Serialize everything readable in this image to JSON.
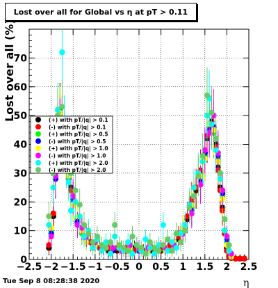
{
  "title": "Lost over all for Global vs  η at pT > 0.11",
  "timestamp": "Tue Sep  8 08:28:38 2020",
  "colors": {
    "red": "#ff0000",
    "black": "#000000",
    "green": "#00ff00",
    "blue": "#0000ff",
    "yellow": "#ffff00",
    "magenta": "#ff00ff",
    "cyan": "#00ffff",
    "lightgreen": "#66cc66"
  },
  "chart_data": {
    "type": "scatter",
    "xlabel": "η",
    "ylabel": "Lost over all (%)",
    "xlim": [
      -2.5,
      2.5
    ],
    "ylim": [
      0,
      80
    ],
    "x_ticks": [
      "−2.5",
      "−2",
      "−1.5",
      "−1",
      "−0.5",
      "0",
      "0.5",
      "1",
      "1.5",
      "2",
      "2.5"
    ],
    "y_ticks": [
      "0",
      "10",
      "20",
      "30",
      "40",
      "50",
      "60",
      "70"
    ],
    "grid": true,
    "legend_position": "left-middle",
    "series": [
      {
        "name": "(+) with pT/|q| > 0.1",
        "color": "black",
        "x": [
          -2.05,
          -1.95,
          -1.9,
          -1.85,
          -1.8,
          -1.75,
          -1.7,
          -1.65,
          -1.6,
          -1.55,
          -1.5,
          -1.4,
          -1.3,
          -1.2,
          -1.1,
          -1.0,
          -0.9,
          -0.8,
          -0.7,
          -0.6,
          -0.5,
          -0.4,
          -0.3,
          -0.2,
          -0.1,
          0.0,
          0.1,
          0.2,
          0.3,
          0.4,
          0.5,
          0.6,
          0.7,
          0.8,
          0.9,
          1.0,
          1.1,
          1.2,
          1.3,
          1.4,
          1.5,
          1.55,
          1.6,
          1.65,
          1.7,
          1.75,
          1.8,
          1.85,
          1.9,
          1.95,
          2.0,
          2.05,
          2.1,
          2.2,
          2.3,
          2.4
        ],
        "y": [
          4,
          15,
          33,
          45,
          52,
          48,
          40,
          33,
          28,
          25,
          20,
          14,
          10,
          8,
          6,
          5,
          4,
          4,
          3,
          4,
          3,
          4,
          3,
          3,
          4,
          3,
          3,
          4,
          3,
          4,
          3,
          4,
          5,
          5,
          7,
          10,
          14,
          20,
          24,
          30,
          35,
          42,
          46,
          48,
          45,
          40,
          32,
          25,
          18,
          10,
          4,
          1,
          0.5,
          0.3,
          0.3,
          0.3
        ]
      },
      {
        "name": "(-) with pT/|q| > 0.1",
        "color": "red",
        "x": [
          -2.05,
          -1.95,
          -1.9,
          -1.85,
          -1.8,
          -1.75,
          -1.7,
          -1.65,
          -1.6,
          -1.55,
          -1.5,
          -1.4,
          -1.3,
          -1.2,
          -1.1,
          -1.0,
          -0.9,
          -0.8,
          -0.7,
          -0.6,
          -0.5,
          -0.4,
          -0.3,
          -0.2,
          -0.1,
          0.0,
          0.1,
          0.2,
          0.3,
          0.4,
          0.5,
          0.6,
          0.7,
          0.8,
          0.9,
          1.0,
          1.1,
          1.2,
          1.3,
          1.4,
          1.5,
          1.55,
          1.6,
          1.65,
          1.7,
          1.75,
          1.8,
          1.85,
          1.9,
          1.95,
          2.0,
          2.05,
          2.1,
          2.2,
          2.3,
          2.4
        ],
        "y": [
          5,
          16,
          34,
          46,
          50,
          47,
          41,
          34,
          29,
          24,
          19,
          13,
          10,
          7,
          6,
          5,
          4,
          4,
          4,
          3,
          4,
          3,
          4,
          3,
          3,
          4,
          3,
          3,
          4,
          3,
          4,
          4,
          5,
          6,
          8,
          11,
          15,
          21,
          25,
          31,
          36,
          43,
          47,
          47,
          44,
          39,
          31,
          24,
          17,
          9,
          3,
          1,
          0.5,
          0.3,
          0.3,
          0.3
        ]
      },
      {
        "name": "(+) with pT/|q| > 0.5",
        "color": "green",
        "x": [
          -2.0,
          -1.9,
          -1.8,
          -1.7,
          -1.6,
          -1.5,
          -1.4,
          -1.3,
          -1.2,
          -1.0,
          -0.8,
          -0.6,
          -0.4,
          -0.2,
          0.0,
          0.2,
          0.4,
          0.6,
          0.8,
          1.0,
          1.2,
          1.4,
          1.5,
          1.6,
          1.7,
          1.8,
          1.9,
          2.0,
          2.1
        ],
        "y": [
          10,
          30,
          50,
          40,
          30,
          20,
          14,
          9,
          7,
          5,
          4,
          3,
          4,
          3,
          3,
          4,
          3,
          4,
          6,
          10,
          18,
          28,
          36,
          46,
          44,
          35,
          22,
          6,
          1
        ]
      },
      {
        "name": "(-) with pT/|q| > 0.5",
        "color": "blue",
        "x": [
          -2.0,
          -1.9,
          -1.8,
          -1.7,
          -1.6,
          -1.5,
          -1.4,
          -1.3,
          -1.2,
          -1.0,
          -0.8,
          -0.6,
          -0.4,
          -0.2,
          0.0,
          0.2,
          0.4,
          0.6,
          0.8,
          1.0,
          1.2,
          1.4,
          1.5,
          1.6,
          1.7,
          1.8,
          1.9,
          2.0,
          2.1
        ],
        "y": [
          9,
          28,
          48,
          41,
          31,
          21,
          13,
          10,
          7,
          6,
          4,
          3,
          3,
          4,
          3,
          3,
          4,
          3,
          5,
          9,
          17,
          27,
          37,
          45,
          46,
          36,
          23,
          7,
          1
        ]
      },
      {
        "name": "(+) with pT/|q| > 1.0",
        "color": "yellow",
        "x": [
          -2.0,
          -1.9,
          -1.8,
          -1.7,
          -1.6,
          -1.5,
          -1.4,
          -1.3,
          -1.2,
          -1.0,
          -0.8,
          -0.6,
          -0.4,
          -0.2,
          0.0,
          0.2,
          0.4,
          0.6,
          0.8,
          1.0,
          1.2,
          1.4,
          1.5,
          1.6,
          1.7,
          1.8,
          1.9,
          2.0,
          2.1
        ],
        "y": [
          11,
          32,
          51,
          42,
          29,
          19,
          15,
          10,
          6,
          5,
          5,
          4,
          3,
          4,
          4,
          3,
          4,
          3,
          6,
          11,
          19,
          29,
          35,
          47,
          45,
          34,
          21,
          5,
          1
        ]
      },
      {
        "name": "(-) with pT/|q| > 1.0",
        "color": "magenta",
        "x": [
          -2.0,
          -1.9,
          -1.8,
          -1.7,
          -1.6,
          -1.5,
          -1.4,
          -1.3,
          -1.2,
          -1.0,
          -0.8,
          -0.6,
          -0.4,
          -0.2,
          0.0,
          0.2,
          0.4,
          0.6,
          0.8,
          1.0,
          1.2,
          1.4,
          1.5,
          1.6,
          1.7,
          1.8,
          1.9,
          2.0,
          2.1
        ],
        "y": [
          8,
          29,
          47,
          43,
          32,
          22,
          12,
          11,
          8,
          6,
          4,
          4,
          3,
          5,
          4,
          4,
          3,
          4,
          5,
          9,
          16,
          26,
          38,
          44,
          50,
          37,
          24,
          8,
          2
        ]
      },
      {
        "name": "(+) with pT/|q| > 2.0",
        "color": "cyan",
        "x": [
          -2.05,
          -1.95,
          -1.85,
          -1.75,
          -1.7,
          -1.65,
          -1.6,
          -1.55,
          -1.45,
          -1.35,
          -1.25,
          -1.15,
          -1.05,
          -0.95,
          -0.85,
          -0.75,
          -0.65,
          -0.55,
          -0.45,
          -0.35,
          -0.25,
          -0.15,
          -0.05,
          0.05,
          0.15,
          0.25,
          0.35,
          0.45,
          0.55,
          0.65,
          0.75,
          0.85,
          0.95,
          1.05,
          1.15,
          1.25,
          1.35,
          1.45,
          1.55,
          1.6,
          1.65,
          1.75,
          1.85,
          1.95,
          2.05
        ],
        "y": [
          12,
          25,
          52,
          72,
          48,
          32,
          27,
          17,
          20,
          15,
          8,
          10,
          4,
          7,
          3,
          6,
          2,
          8,
          4,
          3,
          6,
          2,
          5,
          3,
          7,
          4,
          2,
          5,
          12,
          3,
          6,
          4,
          9,
          12,
          19,
          25,
          30,
          34,
          50,
          56,
          47,
          38,
          28,
          10,
          3
        ]
      },
      {
        "name": "(-) with pT/|q| > 2.0",
        "color": "lightgreen",
        "x": [
          -2.05,
          -1.95,
          -1.85,
          -1.75,
          -1.65,
          -1.55,
          -1.45,
          -1.35,
          -1.25,
          -1.15,
          -1.05,
          -0.95,
          -0.85,
          -0.75,
          -0.65,
          -0.55,
          -0.45,
          -0.35,
          -0.25,
          -0.15,
          -0.05,
          0.05,
          0.15,
          0.25,
          0.35,
          0.45,
          0.55,
          0.65,
          0.75,
          0.85,
          0.95,
          1.05,
          1.15,
          1.25,
          1.35,
          1.45,
          1.55,
          1.65,
          1.75,
          1.85,
          1.95,
          2.05
        ],
        "y": [
          15,
          30,
          50,
          53,
          36,
          30,
          24,
          19,
          12,
          9,
          6,
          8,
          5,
          4,
          6,
          12,
          5,
          4,
          3,
          8,
          5,
          4,
          2,
          6,
          4,
          3,
          5,
          7,
          3,
          9,
          6,
          10,
          18,
          22,
          29,
          36,
          57,
          51,
          42,
          30,
          14,
          5
        ]
      }
    ]
  }
}
